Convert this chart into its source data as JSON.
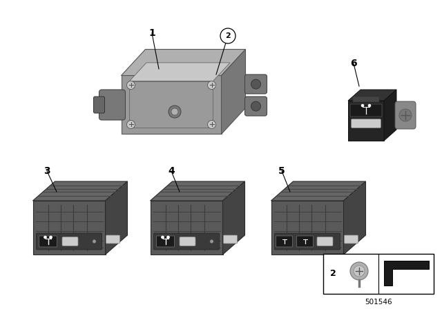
{
  "bg_color": "#ffffff",
  "part_number": "501546",
  "hub_color_top": "#b0b0b0",
  "hub_color_front": "#9a9a9a",
  "hub_color_side": "#787878",
  "hub_color_light": "#c8c8c8",
  "module_color_top": "#666666",
  "module_color_front": "#5a5a5a",
  "module_color_side": "#444444",
  "module_rib_color": "#3a3a3a",
  "small_usb_body": "#2a2a2a",
  "small_usb_top": "#3a3a3a",
  "small_usb_side": "#222222",
  "connector_color": "#888888",
  "port_black": "#111111",
  "port_white": "#dddddd",
  "line_color": "#000000"
}
